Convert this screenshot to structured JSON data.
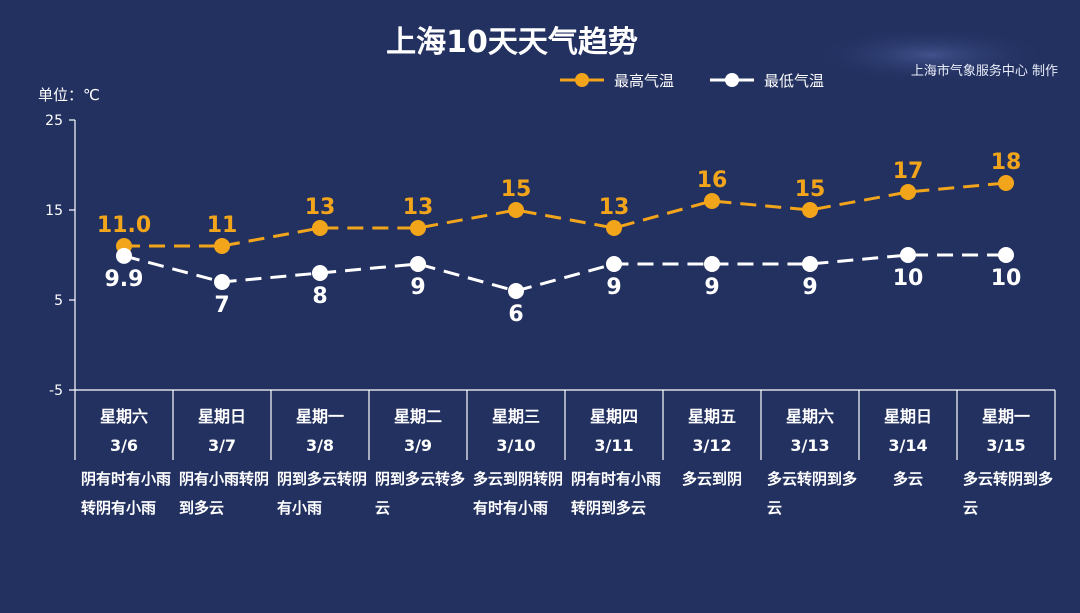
{
  "title": "上海10天天气趋势",
  "source": "上海市气象服务中心 制作",
  "chart_data": {
    "type": "line",
    "title": "上海10天天气趋势",
    "ylabel": "单位：℃",
    "ylim": [
      -5,
      25
    ],
    "yticks": [
      25,
      15,
      5,
      -5
    ],
    "legend": "top-right",
    "grid": false,
    "days": [
      {
        "day": "星期六",
        "date": "3/6",
        "condition": "阴有时有小雨转阴有小雨"
      },
      {
        "day": "星期日",
        "date": "3/7",
        "condition": "阴有小雨转阴到多云"
      },
      {
        "day": "星期一",
        "date": "3/8",
        "condition": "阴到多云转阴有小雨"
      },
      {
        "day": "星期二",
        "date": "3/9",
        "condition": "阴到多云转多云"
      },
      {
        "day": "星期三",
        "date": "3/10",
        "condition": "多云到阴转阴有时有小雨"
      },
      {
        "day": "星期四",
        "date": "3/11",
        "condition": "阴有时有小雨转阴到多云"
      },
      {
        "day": "星期五",
        "date": "3/12",
        "condition": "多云到阴"
      },
      {
        "day": "星期六",
        "date": "3/13",
        "condition": "多云转阴到多云"
      },
      {
        "day": "星期日",
        "date": "3/14",
        "condition": "多云"
      },
      {
        "day": "星期一",
        "date": "3/15",
        "condition": "多云转阴到多云"
      }
    ],
    "series": [
      {
        "name": "最高气温",
        "color": "#f2a51a",
        "values": [
          11.0,
          11,
          13,
          13,
          15,
          13,
          16,
          15,
          17,
          18
        ],
        "labels": [
          "11.0",
          "11",
          "13",
          "13",
          "15",
          "13",
          "16",
          "15",
          "17",
          "18"
        ]
      },
      {
        "name": "最低气温",
        "color": "#ffffff",
        "values": [
          9.9,
          7,
          8,
          9,
          6,
          9,
          9,
          9,
          10,
          10
        ],
        "labels": [
          "9.9",
          "7",
          "8",
          "9",
          "6",
          "9",
          "9",
          "9",
          "10",
          "10"
        ]
      }
    ]
  }
}
